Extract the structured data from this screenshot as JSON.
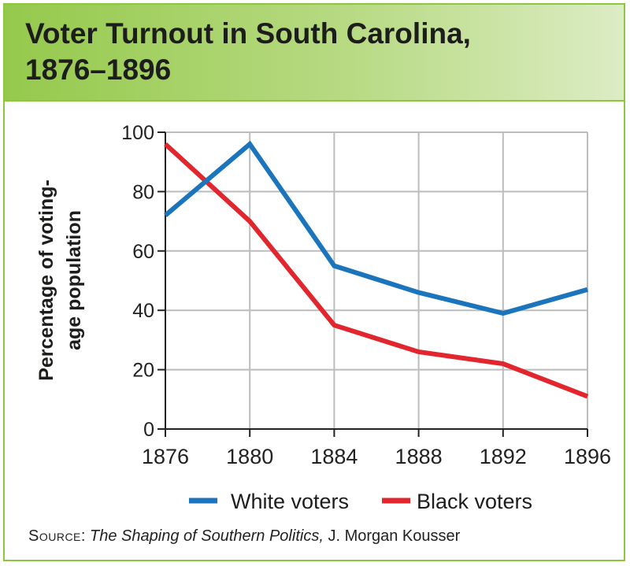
{
  "header": {
    "title_line1": "Voter Turnout in South Carolina,",
    "title_line2": "1876–1896"
  },
  "colors": {
    "header_green": "#95c94c",
    "border_green": "#8dc63f",
    "white_series": "#1b75bc",
    "black_series": "#e1262d",
    "grid": "#bcbcbc"
  },
  "chart_data": {
    "type": "line",
    "title": "Voter Turnout in South Carolina, 1876–1896",
    "ylabel_line1": "Percentage of voting-",
    "ylabel_line2": "age population",
    "xlabel": "",
    "x": [
      1876,
      1880,
      1884,
      1888,
      1892,
      1896
    ],
    "x_tick_labels": [
      "1876",
      "1880",
      "1884",
      "1888",
      "1892",
      "1896"
    ],
    "y_ticks": [
      0,
      20,
      40,
      60,
      80,
      100
    ],
    "y_tick_labels": [
      "0",
      "20",
      "40",
      "60",
      "80",
      "100"
    ],
    "ylim": [
      0,
      100
    ],
    "xlim": [
      1876,
      1896
    ],
    "grid": true,
    "legend_position": "bottom",
    "series": [
      {
        "name": "White voters",
        "color": "#1b75bc",
        "values": [
          72,
          96,
          55,
          46,
          39,
          47
        ]
      },
      {
        "name": "Black voters",
        "color": "#e1262d",
        "values": [
          96,
          70,
          35,
          26,
          22,
          11
        ]
      }
    ]
  },
  "source": {
    "label": "Source",
    "work": "The Shaping of Southern Politics,",
    "author": "J. Morgan Kousser"
  }
}
